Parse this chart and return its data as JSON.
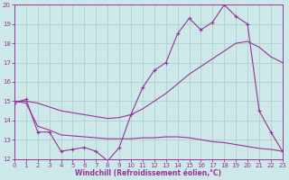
{
  "background_color": "#cce8e8",
  "grid_color": "#aacccc",
  "line_color": "#993399",
  "xlabel": "Windchill (Refroidissement éolien,°C)",
  "xlabel_fontsize": 5.5,
  "tick_fontsize": 5.0,
  "ylim": [
    12,
    20
  ],
  "xlim": [
    0,
    23
  ],
  "yticks": [
    12,
    13,
    14,
    15,
    16,
    17,
    18,
    19,
    20
  ],
  "xticks": [
    0,
    1,
    2,
    3,
    4,
    5,
    6,
    7,
    8,
    9,
    10,
    11,
    12,
    13,
    14,
    15,
    16,
    17,
    18,
    19,
    20,
    21,
    22,
    23
  ],
  "line1_x": [
    0,
    1,
    2,
    3,
    4,
    5,
    6,
    7,
    8,
    9,
    10,
    11,
    12,
    13,
    14,
    15,
    16,
    17,
    18,
    19,
    20,
    21,
    22,
    23
  ],
  "line1_y": [
    14.9,
    15.1,
    13.4,
    13.4,
    12.4,
    12.5,
    12.6,
    12.4,
    11.9,
    12.6,
    14.3,
    15.7,
    16.6,
    17.0,
    18.5,
    19.3,
    18.7,
    19.1,
    20.0,
    19.4,
    19.0,
    14.5,
    13.4,
    12.4
  ],
  "line2_x": [
    0,
    1,
    2,
    3,
    4,
    5,
    6,
    7,
    8,
    9,
    10,
    11,
    12,
    13,
    14,
    15,
    16,
    17,
    18,
    19,
    20,
    21,
    22,
    23
  ],
  "line2_y": [
    15.0,
    15.0,
    14.9,
    14.7,
    14.5,
    14.4,
    14.3,
    14.2,
    14.1,
    14.15,
    14.3,
    14.6,
    15.0,
    15.4,
    15.9,
    16.4,
    16.8,
    17.2,
    17.6,
    18.0,
    18.1,
    17.8,
    17.3,
    17.0
  ],
  "line3_x": [
    0,
    1,
    2,
    3,
    4,
    5,
    6,
    7,
    8,
    9,
    10,
    11,
    12,
    13,
    14,
    15,
    16,
    17,
    18,
    19,
    20,
    21,
    22,
    23
  ],
  "line3_y": [
    15.0,
    14.9,
    13.7,
    13.5,
    13.25,
    13.2,
    13.15,
    13.1,
    13.05,
    13.05,
    13.05,
    13.1,
    13.1,
    13.15,
    13.15,
    13.1,
    13.0,
    12.9,
    12.85,
    12.75,
    12.65,
    12.55,
    12.5,
    12.4
  ]
}
